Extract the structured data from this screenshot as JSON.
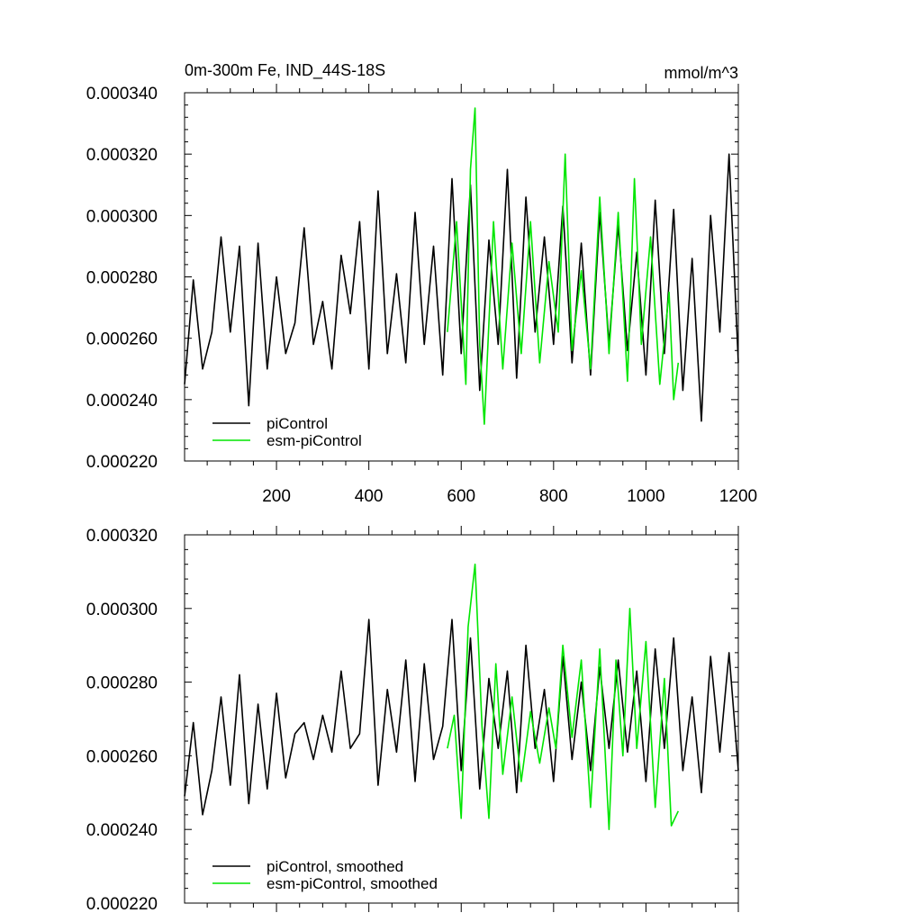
{
  "chart_data": [
    {
      "type": "line",
      "title": "0m-300m Fe, IND_44S-18S",
      "units": "mmol/m^3",
      "xlim": [
        1,
        1200
      ],
      "ylim": [
        0.00022,
        0.00034
      ],
      "x_ticks": [
        "200",
        "400",
        "600",
        "800",
        "1000",
        "1200"
      ],
      "y_ticks": [
        "0.000220",
        "0.000240",
        "0.000260",
        "0.000280",
        "0.000300",
        "0.000320",
        "0.000340"
      ],
      "legend_position": "bottom-left",
      "series": [
        {
          "name": "piControl",
          "color": "#000000",
          "x": [
            1,
            20,
            40,
            60,
            80,
            100,
            120,
            140,
            160,
            180,
            200,
            220,
            240,
            260,
            280,
            300,
            320,
            340,
            360,
            380,
            400,
            420,
            440,
            460,
            480,
            500,
            520,
            540,
            560,
            580,
            600,
            620,
            640,
            660,
            680,
            700,
            720,
            740,
            760,
            780,
            800,
            820,
            840,
            860,
            880,
            900,
            920,
            940,
            960,
            980,
            1000,
            1020,
            1040,
            1060,
            1080,
            1100,
            1120,
            1140,
            1160,
            1180,
            1200
          ],
          "values": [
            0.000245,
            0.000279,
            0.00025,
            0.000262,
            0.000293,
            0.000262,
            0.00029,
            0.000238,
            0.000291,
            0.00025,
            0.00028,
            0.000255,
            0.000265,
            0.000296,
            0.000258,
            0.000272,
            0.00025,
            0.000287,
            0.000268,
            0.000298,
            0.00025,
            0.000308,
            0.000255,
            0.000281,
            0.000252,
            0.000301,
            0.000258,
            0.00029,
            0.000248,
            0.000312,
            0.000255,
            0.00031,
            0.000243,
            0.000292,
            0.000258,
            0.000315,
            0.000247,
            0.000306,
            0.000262,
            0.000293,
            0.000258,
            0.000303,
            0.000252,
            0.000291,
            0.000248,
            0.000301,
            0.000258,
            0.000297,
            0.000256,
            0.000288,
            0.000248,
            0.000305,
            0.000255,
            0.000302,
            0.000243,
            0.000286,
            0.000233,
            0.0003,
            0.000262,
            0.00032,
            0.000252
          ]
        },
        {
          "name": "esm-piControl",
          "color": "#00e600",
          "x": [
            570,
            590,
            610,
            620,
            630,
            640,
            650,
            670,
            690,
            710,
            730,
            750,
            770,
            790,
            810,
            825,
            840,
            860,
            880,
            900,
            920,
            940,
            960,
            975,
            990,
            1010,
            1030,
            1050,
            1060,
            1070
          ],
          "values": [
            0.000262,
            0.000298,
            0.000245,
            0.000315,
            0.000335,
            0.000258,
            0.000232,
            0.000298,
            0.00025,
            0.000291,
            0.000255,
            0.000298,
            0.000252,
            0.000285,
            0.000262,
            0.00032,
            0.000256,
            0.000282,
            0.00025,
            0.000306,
            0.000255,
            0.000301,
            0.000246,
            0.000312,
            0.000258,
            0.000293,
            0.000245,
            0.000275,
            0.00024,
            0.000252
          ]
        }
      ]
    },
    {
      "type": "line",
      "xlim": [
        1,
        1200
      ],
      "ylim": [
        0.00022,
        0.00032
      ],
      "y_ticks": [
        "0.000220",
        "0.000240",
        "0.000260",
        "0.000280",
        "0.000300",
        "0.000320"
      ],
      "legend_position": "bottom-left",
      "series": [
        {
          "name": "piControl, smoothed",
          "color": "#000000",
          "x": [
            1,
            20,
            40,
            60,
            80,
            100,
            120,
            140,
            160,
            180,
            200,
            220,
            240,
            260,
            280,
            300,
            320,
            340,
            360,
            380,
            400,
            420,
            440,
            460,
            480,
            500,
            520,
            540,
            560,
            580,
            600,
            620,
            640,
            660,
            680,
            700,
            720,
            740,
            760,
            780,
            800,
            820,
            840,
            860,
            880,
            900,
            920,
            940,
            960,
            980,
            1000,
            1020,
            1040,
            1060,
            1080,
            1100,
            1120,
            1140,
            1160,
            1180,
            1200
          ],
          "values": [
            0.000249,
            0.000269,
            0.000244,
            0.000256,
            0.000276,
            0.000252,
            0.000282,
            0.000247,
            0.000274,
            0.000251,
            0.000277,
            0.000254,
            0.000266,
            0.000269,
            0.000259,
            0.000271,
            0.000261,
            0.000283,
            0.000262,
            0.000266,
            0.000297,
            0.000252,
            0.000278,
            0.000261,
            0.000286,
            0.000253,
            0.000285,
            0.000259,
            0.000268,
            0.000297,
            0.000256,
            0.000292,
            0.000251,
            0.000281,
            0.000262,
            0.000283,
            0.00025,
            0.00029,
            0.000262,
            0.000278,
            0.000253,
            0.000287,
            0.000259,
            0.00028,
            0.000256,
            0.000284,
            0.000262,
            0.000286,
            0.000261,
            0.000283,
            0.000253,
            0.000289,
            0.000262,
            0.000292,
            0.000256,
            0.000276,
            0.00025,
            0.000287,
            0.000261,
            0.000288,
            0.000256
          ]
        },
        {
          "name": "esm-piControl, smoothed",
          "color": "#00e600",
          "x": [
            570,
            585,
            600,
            615,
            630,
            645,
            660,
            675,
            690,
            710,
            730,
            750,
            770,
            790,
            805,
            820,
            840,
            860,
            880,
            900,
            920,
            935,
            950,
            965,
            980,
            1000,
            1020,
            1040,
            1055,
            1070
          ],
          "values": [
            0.000262,
            0.000271,
            0.000243,
            0.000295,
            0.000312,
            0.000268,
            0.000243,
            0.000285,
            0.000255,
            0.000276,
            0.000253,
            0.000272,
            0.000258,
            0.000273,
            0.000262,
            0.00029,
            0.000265,
            0.000286,
            0.000246,
            0.000289,
            0.00024,
            0.000286,
            0.00026,
            0.0003,
            0.000262,
            0.000291,
            0.000246,
            0.000281,
            0.000241,
            0.000245
          ]
        }
      ]
    }
  ]
}
